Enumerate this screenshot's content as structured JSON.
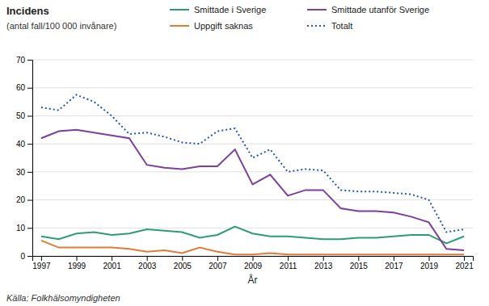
{
  "chart_data": {
    "type": "line",
    "title": "Incidens",
    "subtitle": "(antal fall/100 000 invånare)",
    "x_label": "År",
    "source": "Källa: Folkhälsomyndigheten",
    "x": [
      1997,
      1998,
      1999,
      2000,
      2001,
      2002,
      2003,
      2004,
      2005,
      2006,
      2007,
      2008,
      2009,
      2010,
      2011,
      2012,
      2013,
      2014,
      2015,
      2016,
      2017,
      2018,
      2019,
      2020,
      2021
    ],
    "series": [
      {
        "name": "Smittade i Sverige",
        "color": "#2e9b78",
        "line_style": "solid",
        "values": [
          7.0,
          6.0,
          8.0,
          8.5,
          7.5,
          8.0,
          9.5,
          9.0,
          8.5,
          6.5,
          7.5,
          10.5,
          8.0,
          7.0,
          7.0,
          6.5,
          6.0,
          6.0,
          6.5,
          6.5,
          7.0,
          7.5,
          7.5,
          4.5,
          7.0
        ]
      },
      {
        "name": "Smittade utanför Sverige",
        "color": "#7b3f9e",
        "line_style": "solid",
        "values": [
          42.0,
          44.5,
          45.0,
          44.0,
          43.0,
          42.0,
          32.5,
          31.5,
          31.0,
          32.0,
          32.0,
          38.0,
          25.5,
          29.0,
          21.5,
          23.5,
          23.5,
          17.0,
          16.0,
          16.0,
          15.5,
          14.0,
          12.0,
          2.5,
          2.0
        ]
      },
      {
        "name": "Uppgift saknas",
        "color": "#e07b39",
        "line_style": "solid",
        "values": [
          5.5,
          3.0,
          3.0,
          3.0,
          3.0,
          2.5,
          1.5,
          2.0,
          1.0,
          3.0,
          1.5,
          0.5,
          0.5,
          1.0,
          0.5,
          0.5,
          0.5,
          0.5,
          0.5,
          0.5,
          0.5,
          0.5,
          0.5,
          0.5,
          0.5
        ]
      },
      {
        "name": "Totalt",
        "color": "#2255bb",
        "line_style": "dotted",
        "values": [
          53.0,
          52.0,
          57.5,
          55.0,
          50.0,
          43.5,
          44.0,
          42.5,
          40.5,
          40.0,
          44.5,
          45.5,
          35.0,
          38.0,
          30.0,
          31.0,
          30.5,
          23.5,
          23.0,
          23.0,
          22.5,
          22.0,
          20.0,
          8.5,
          9.5
        ]
      }
    ],
    "xlim": [
      1996.5,
      2021.5
    ],
    "xticks": [
      1997,
      1999,
      2001,
      2003,
      2005,
      2007,
      2009,
      2011,
      2013,
      2015,
      2017,
      2019,
      2021
    ],
    "ylim": [
      0,
      70
    ],
    "yticks": [
      0,
      10,
      20,
      30,
      40,
      50,
      60,
      70
    ],
    "grid": true,
    "legend": "top"
  }
}
